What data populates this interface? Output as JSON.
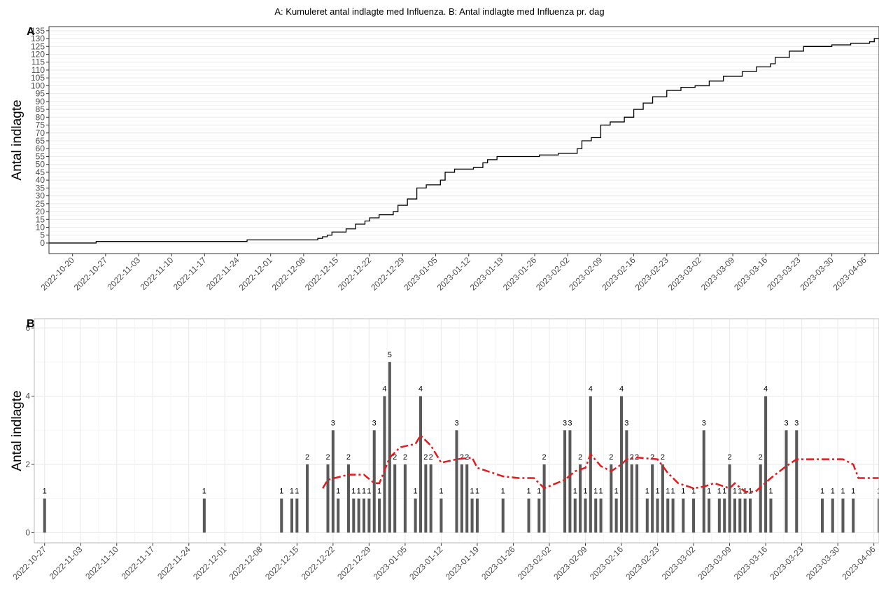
{
  "title": "A: Kumuleret antal indlagte med Influenza. B: Antal indlagte med Influenza pr. dag",
  "chart_data": [
    {
      "type": "line",
      "panel": "A",
      "ylabel": "Antal indlagte",
      "step": true,
      "color": "#000000",
      "grid": "y",
      "x": [
        "2022-10-15",
        "2022-10-25",
        "2022-11-26",
        "2022-12-11",
        "2022-12-12",
        "2022-12-13",
        "2022-12-14",
        "2022-12-17",
        "2022-12-19",
        "2022-12-21",
        "2022-12-22",
        "2022-12-24",
        "2022-12-27",
        "2022-12-28",
        "2022-12-30",
        "2023-01-01",
        "2023-01-03",
        "2023-01-06",
        "2023-01-07",
        "2023-01-09",
        "2023-01-13",
        "2023-01-15",
        "2023-01-16",
        "2023-01-18",
        "2023-01-27",
        "2023-01-31",
        "2023-02-04",
        "2023-02-05",
        "2023-02-07",
        "2023-02-09",
        "2023-02-11",
        "2023-02-14",
        "2023-02-16",
        "2023-02-18",
        "2023-02-20",
        "2023-02-23",
        "2023-02-26",
        "2023-03-01",
        "2023-03-04",
        "2023-03-07",
        "2023-03-11",
        "2023-03-14",
        "2023-03-17",
        "2023-03-18",
        "2023-03-21",
        "2023-03-24",
        "2023-03-30",
        "2023-04-03",
        "2023-04-07",
        "2023-04-08"
      ],
      "values": [
        0,
        1,
        2,
        3,
        4,
        5,
        7,
        9,
        12,
        14,
        16,
        18,
        20,
        24,
        28,
        35,
        37,
        40,
        45,
        47,
        48,
        51,
        53,
        55,
        56,
        57,
        60,
        65,
        67,
        75,
        77,
        80,
        85,
        89,
        93,
        97,
        99,
        100,
        103,
        106,
        109,
        112,
        114,
        118,
        122,
        125,
        126,
        127,
        128,
        130
      ],
      "xlim": [
        "2022-10-15",
        "2023-04-09"
      ],
      "xticks": [
        "2022-10-20",
        "2022-10-27",
        "2022-11-03",
        "2022-11-10",
        "2022-11-17",
        "2022-11-24",
        "2022-12-01",
        "2022-12-08",
        "2022-12-15",
        "2022-12-22",
        "2022-12-29",
        "2023-01-05",
        "2023-01-12",
        "2023-01-19",
        "2023-01-26",
        "2023-02-02",
        "2023-02-09",
        "2023-02-16",
        "2023-02-23",
        "2023-03-02",
        "2023-03-09",
        "2023-03-16",
        "2023-03-23",
        "2023-03-30",
        "2023-04-06"
      ],
      "ylim": [
        -6.7,
        137.6
      ],
      "yticks": [
        0,
        5,
        10,
        15,
        20,
        25,
        30,
        35,
        40,
        45,
        50,
        55,
        60,
        65,
        70,
        75,
        80,
        85,
        90,
        95,
        100,
        105,
        110,
        115,
        120,
        125,
        130,
        135
      ]
    },
    {
      "type": "bar",
      "panel": "B",
      "ylabel": "Antal indlagte",
      "color": "#595959",
      "grid": "xy",
      "data_labels": true,
      "x": [
        "2022-10-27",
        "2022-11-27",
        "2022-12-12",
        "2022-12-14",
        "2022-12-15",
        "2022-12-17",
        "2022-12-21",
        "2022-12-22",
        "2022-12-23",
        "2022-12-25",
        "2022-12-26",
        "2022-12-27",
        "2022-12-28",
        "2022-12-29",
        "2022-12-30",
        "2022-12-31",
        "2023-01-01",
        "2023-01-02",
        "2023-01-03",
        "2023-01-05",
        "2023-01-07",
        "2023-01-08",
        "2023-01-09",
        "2023-01-10",
        "2023-01-12",
        "2023-01-15",
        "2023-01-16",
        "2023-01-17",
        "2023-01-18",
        "2023-01-19",
        "2023-01-24",
        "2023-01-29",
        "2023-01-31",
        "2023-02-01",
        "2023-02-05",
        "2023-02-06",
        "2023-02-07",
        "2023-02-08",
        "2023-02-09",
        "2023-02-10",
        "2023-02-11",
        "2023-02-12",
        "2023-02-14",
        "2023-02-15",
        "2023-02-16",
        "2023-02-17",
        "2023-02-18",
        "2023-02-19",
        "2023-02-21",
        "2023-02-22",
        "2023-02-23",
        "2023-02-24",
        "2023-02-25",
        "2023-02-26",
        "2023-02-28",
        "2023-03-02",
        "2023-03-04",
        "2023-03-05",
        "2023-03-07",
        "2023-03-08",
        "2023-03-09",
        "2023-03-10",
        "2023-03-11",
        "2023-03-12",
        "2023-03-13",
        "2023-03-15",
        "2023-03-16",
        "2023-03-17",
        "2023-03-20",
        "2023-03-22",
        "2023-03-27",
        "2023-03-29",
        "2023-03-31",
        "2023-04-02",
        "2023-04-07"
      ],
      "values": [
        1,
        1,
        1,
        1,
        1,
        2,
        2,
        3,
        1,
        2,
        1,
        1,
        1,
        1,
        3,
        1,
        4,
        5,
        2,
        2,
        1,
        4,
        2,
        2,
        1,
        3,
        2,
        2,
        1,
        1,
        1,
        1,
        1,
        2,
        3,
        3,
        1,
        2,
        1,
        4,
        1,
        1,
        2,
        1,
        4,
        3,
        2,
        2,
        1,
        2,
        1,
        2,
        1,
        1,
        1,
        1,
        3,
        1,
        1,
        1,
        2,
        1,
        1,
        1,
        1,
        2,
        4,
        1,
        3,
        3,
        1,
        1,
        1,
        1,
        1
      ],
      "overlay": {
        "type": "line",
        "color": "#e41a1c",
        "dash": "dashdot",
        "x": [
          "2022-12-20",
          "2022-12-21",
          "2022-12-25",
          "2022-12-28",
          "2022-12-30",
          "2022-12-31",
          "2023-01-02",
          "2023-01-04",
          "2023-01-07",
          "2023-01-08",
          "2023-01-10",
          "2023-01-12",
          "2023-01-15",
          "2023-01-18",
          "2023-01-19",
          "2023-01-24",
          "2023-01-27",
          "2023-01-30",
          "2023-02-01",
          "2023-02-05",
          "2023-02-07",
          "2023-02-09",
          "2023-02-10",
          "2023-02-12",
          "2023-02-14",
          "2023-02-16",
          "2023-02-17",
          "2023-02-19",
          "2023-02-23",
          "2023-02-25",
          "2023-02-27",
          "2023-03-02",
          "2023-03-04",
          "2023-03-06",
          "2023-03-09",
          "2023-03-10",
          "2023-03-12",
          "2023-03-14",
          "2023-03-17",
          "2023-03-20",
          "2023-03-22",
          "2023-03-31",
          "2023-04-02",
          "2023-04-03",
          "2023-04-07"
        ],
        "values": [
          1.3,
          1.55,
          1.7,
          1.7,
          1.45,
          1.45,
          2.2,
          2.5,
          2.6,
          2.85,
          2.55,
          2.05,
          2.15,
          2.2,
          1.9,
          1.65,
          1.6,
          1.6,
          1.3,
          1.55,
          1.8,
          1.9,
          2.3,
          1.95,
          1.8,
          2.0,
          2.15,
          2.2,
          2.15,
          1.75,
          1.45,
          1.3,
          1.35,
          1.45,
          1.3,
          1.45,
          1.2,
          1.2,
          1.6,
          1.95,
          2.15,
          2.15,
          2.0,
          1.6,
          1.6
        ]
      },
      "xlim": [
        "2022-10-25",
        "2023-04-07"
      ],
      "xticks": [
        "2022-10-27",
        "2022-11-03",
        "2022-11-10",
        "2022-11-17",
        "2022-11-24",
        "2022-12-01",
        "2022-12-08",
        "2022-12-15",
        "2022-12-22",
        "2022-12-29",
        "2023-01-05",
        "2023-01-12",
        "2023-01-19",
        "2023-01-26",
        "2023-02-02",
        "2023-02-09",
        "2023-02-16",
        "2023-02-23",
        "2023-03-02",
        "2023-03-09",
        "2023-03-16",
        "2023-03-23",
        "2023-03-30",
        "2023-04-06"
      ],
      "ylim": [
        -0.3,
        6.27
      ],
      "yticks": [
        0,
        2,
        4,
        6
      ]
    }
  ]
}
